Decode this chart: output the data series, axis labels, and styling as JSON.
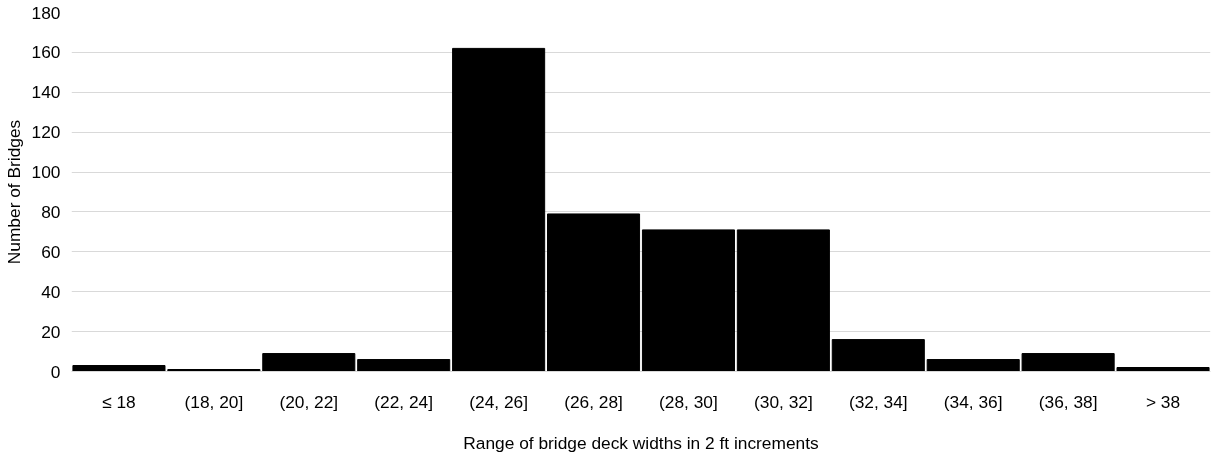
{
  "chart_data": {
    "type": "bar",
    "xlabel": "Range of bridge deck widths in 2 ft increments",
    "ylabel": "Number of Bridges",
    "categories": [
      "≤ 18",
      "(18, 20]",
      "(20, 22]",
      "(22, 24]",
      "(24, 26]",
      "(26, 28]",
      "(28, 30]",
      "(30, 32]",
      "(32, 34]",
      "(34, 36]",
      "(36, 38]",
      "> 38"
    ],
    "values": [
      3,
      1,
      9,
      6,
      162,
      79,
      71,
      71,
      16,
      6,
      9,
      2
    ],
    "color": "#000000",
    "ylim": [
      0,
      180
    ],
    "yticks": [
      0,
      20,
      40,
      60,
      80,
      100,
      120,
      140,
      160,
      180
    ],
    "grid": "y"
  }
}
